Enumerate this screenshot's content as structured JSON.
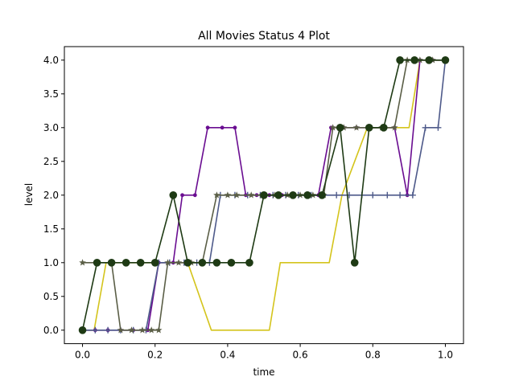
{
  "chart_data": {
    "type": "line",
    "title": "All Movies Status 4 Plot",
    "xlabel": "time",
    "ylabel": "level",
    "xlim": [
      -0.05,
      1.05
    ],
    "ylim": [
      -0.2,
      4.2
    ],
    "xticks": [
      "0.0",
      "0.2",
      "0.4",
      "0.6",
      "0.8",
      "1.0"
    ],
    "yticks": [
      "0.0",
      "0.5",
      "1.0",
      "1.5",
      "2.0",
      "2.5",
      "3.0",
      "3.5",
      "4.0"
    ],
    "grid": false,
    "series": [
      {
        "color": "#d4c41c",
        "marker": "none",
        "x": [
          0.0,
          0.032,
          0.065,
          0.29,
          0.355,
          0.515,
          0.545,
          0.68,
          0.715,
          0.785,
          0.8,
          0.9,
          0.93,
          1.0
        ],
        "y": [
          0,
          0,
          1,
          1,
          0,
          0,
          1,
          1,
          2,
          3,
          3,
          3,
          4,
          4
        ]
      },
      {
        "color": "#6a0d91",
        "marker": "dot",
        "x": [
          0.0,
          0.035,
          0.07,
          0.105,
          0.14,
          0.18,
          0.21,
          0.25,
          0.275,
          0.31,
          0.345,
          0.385,
          0.42,
          0.45,
          0.48,
          0.515,
          0.55,
          0.585,
          0.615,
          0.65,
          0.685,
          0.72,
          0.755,
          0.79,
          0.83,
          0.86,
          0.895,
          0.93,
          0.965,
          1.0
        ],
        "y": [
          0,
          0,
          0,
          0,
          0,
          0,
          1,
          1,
          2,
          2,
          3,
          3,
          3,
          2,
          2,
          2,
          2,
          2,
          2,
          2,
          3,
          3,
          3,
          3,
          3,
          3,
          2,
          4,
          4,
          4
        ]
      },
      {
        "color": "#4e5a8a",
        "marker": "plus",
        "x": [
          0.0,
          0.035,
          0.07,
          0.105,
          0.14,
          0.175,
          0.21,
          0.24,
          0.28,
          0.315,
          0.35,
          0.38,
          0.42,
          0.455,
          0.49,
          0.525,
          0.56,
          0.595,
          0.63,
          0.665,
          0.7,
          0.735,
          0.77,
          0.8,
          0.84,
          0.875,
          0.91,
          0.945,
          0.98,
          1.0
        ],
        "y": [
          0,
          0,
          0,
          0,
          0,
          0,
          1,
          1,
          1,
          1,
          1,
          2,
          2,
          2,
          2,
          2,
          2,
          2,
          2,
          2,
          2,
          2,
          2,
          2,
          2,
          2,
          2,
          3,
          3,
          4
        ]
      },
      {
        "color": "#5a5e46",
        "marker": "star",
        "x": [
          0.0,
          0.04,
          0.08,
          0.105,
          0.135,
          0.165,
          0.19,
          0.21,
          0.235,
          0.265,
          0.3,
          0.33,
          0.37,
          0.4,
          0.425,
          0.465,
          0.495,
          0.53,
          0.565,
          0.6,
          0.635,
          0.665,
          0.69,
          0.72,
          0.755,
          0.79,
          0.825,
          0.86,
          0.895,
          0.93,
          0.965,
          1.0
        ],
        "y": [
          1,
          1,
          1,
          0,
          0,
          0,
          0,
          0,
          1,
          1,
          1,
          1,
          2,
          2,
          2,
          2,
          2,
          2,
          2,
          2,
          2,
          2,
          3,
          3,
          3,
          3,
          3,
          3,
          4,
          4,
          4,
          4
        ]
      },
      {
        "color": "#1e3a14",
        "marker": "circle",
        "x": [
          0.0,
          0.04,
          0.08,
          0.12,
          0.16,
          0.2,
          0.25,
          0.29,
          0.33,
          0.37,
          0.41,
          0.46,
          0.5,
          0.54,
          0.58,
          0.62,
          0.66,
          0.71,
          0.75,
          0.79,
          0.83,
          0.875,
          0.915,
          0.955,
          1.0
        ],
        "y": [
          0,
          1,
          1,
          1,
          1,
          1,
          2,
          1,
          1,
          1,
          1,
          1,
          2,
          2,
          2,
          2,
          2,
          3,
          1,
          3,
          3,
          4,
          4,
          4,
          4
        ]
      }
    ]
  }
}
